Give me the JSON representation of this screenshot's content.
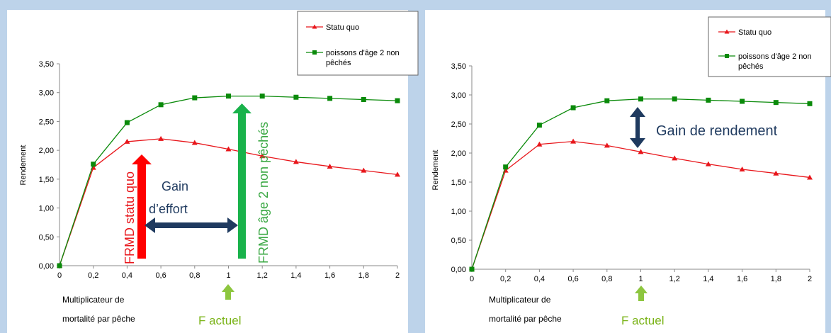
{
  "chart_data": [
    {
      "type": "line",
      "x": [
        0,
        0.2,
        0.4,
        0.6,
        0.8,
        1,
        1.2,
        1.4,
        1.6,
        1.8,
        2
      ],
      "xticks": [
        "0",
        "0,2",
        "0,4",
        "0,6",
        "0,8",
        "1",
        "1,2",
        "1,4",
        "1,6",
        "1,8",
        "2"
      ],
      "yticks": [
        "0,00",
        "0,50",
        "1,00",
        "1,50",
        "2,00",
        "2,50",
        "3,00",
        "3,50"
      ],
      "xlim": [
        0,
        2
      ],
      "ylim": [
        0,
        3.5
      ],
      "ylabel": "Rendement",
      "xlabel_line1": "Multiplicateur de",
      "xlabel_line2": "mortalité par pêche",
      "legend_position": "top-right",
      "series": [
        {
          "name": "Statu quo",
          "color": "#e8161b",
          "marker": "triangle",
          "values": [
            0,
            1.7,
            2.15,
            2.2,
            2.13,
            2.02,
            1.9,
            1.8,
            1.72,
            1.65,
            1.58
          ]
        },
        {
          "name": "poissons d'âge 2 non pêchés",
          "color": "#0a8a0a",
          "marker": "square",
          "values": [
            0,
            1.76,
            2.48,
            2.79,
            2.91,
            2.94,
            2.94,
            2.92,
            2.9,
            2.88,
            2.86
          ]
        }
      ],
      "legend_lines": [
        [
          "Statu quo"
        ],
        [
          "poissons d'âge 2 non",
          "pêchés"
        ]
      ],
      "annotations": {
        "f_actuel": "F actuel",
        "gain_line1": "Gain",
        "gain_line2": "d’effort",
        "frmd_statu_quo": "FRMD statu quo",
        "frmd_age2": "FRMD âge 2 non pêchés"
      }
    },
    {
      "type": "line",
      "x": [
        0,
        0.2,
        0.4,
        0.6,
        0.8,
        1,
        1.2,
        1.4,
        1.6,
        1.8,
        2
      ],
      "xticks": [
        "0",
        "0,2",
        "0,4",
        "0,6",
        "0,8",
        "1",
        "1,2",
        "1,4",
        "1,6",
        "1,8",
        "2"
      ],
      "yticks": [
        "0,00",
        "0,50",
        "1,00",
        "1,50",
        "2,00",
        "2,50",
        "3,00",
        "3,50"
      ],
      "xlim": [
        0,
        2
      ],
      "ylim": [
        0,
        3.5
      ],
      "ylabel": "Rendement",
      "xlabel_line1": "Multiplicateur de",
      "xlabel_line2": "mortalité par pêche",
      "legend_position": "top-right",
      "series": [
        {
          "name": "Statu quo",
          "color": "#e8161b",
          "marker": "triangle",
          "values": [
            0,
            1.7,
            2.15,
            2.2,
            2.13,
            2.02,
            1.91,
            1.81,
            1.72,
            1.65,
            1.58
          ]
        },
        {
          "name": "poissons d'âge 2 non pêchés",
          "color": "#0a8a0a",
          "marker": "square",
          "values": [
            0,
            1.76,
            2.48,
            2.78,
            2.9,
            2.93,
            2.93,
            2.91,
            2.89,
            2.87,
            2.85
          ]
        }
      ],
      "legend_lines": [
        [
          "Statu quo"
        ],
        [
          "poissons d'âge 2 non",
          "pêchés"
        ]
      ],
      "annotations": {
        "f_actuel": "F actuel",
        "gain_rendement": "Gain de rendement"
      }
    }
  ]
}
